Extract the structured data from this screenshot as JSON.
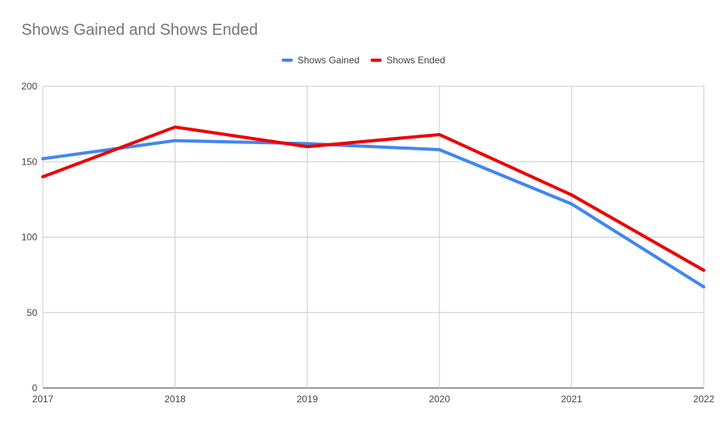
{
  "chart_data": {
    "type": "line",
    "title": "Shows Gained and Shows Ended",
    "categories": [
      "2017",
      "2018",
      "2019",
      "2020",
      "2021",
      "2022"
    ],
    "series": [
      {
        "name": "Shows Gained",
        "values": [
          152,
          164,
          162,
          158,
          122,
          67
        ],
        "color": "#4285f4"
      },
      {
        "name": "Shows Ended",
        "values": [
          140,
          173,
          160,
          168,
          128,
          78
        ],
        "color": "#ee0000"
      }
    ],
    "yticks": [
      "0",
      "50",
      "100",
      "150",
      "200"
    ],
    "ylim": [
      0,
      200
    ],
    "grid": true,
    "legend_position": "top-center"
  }
}
